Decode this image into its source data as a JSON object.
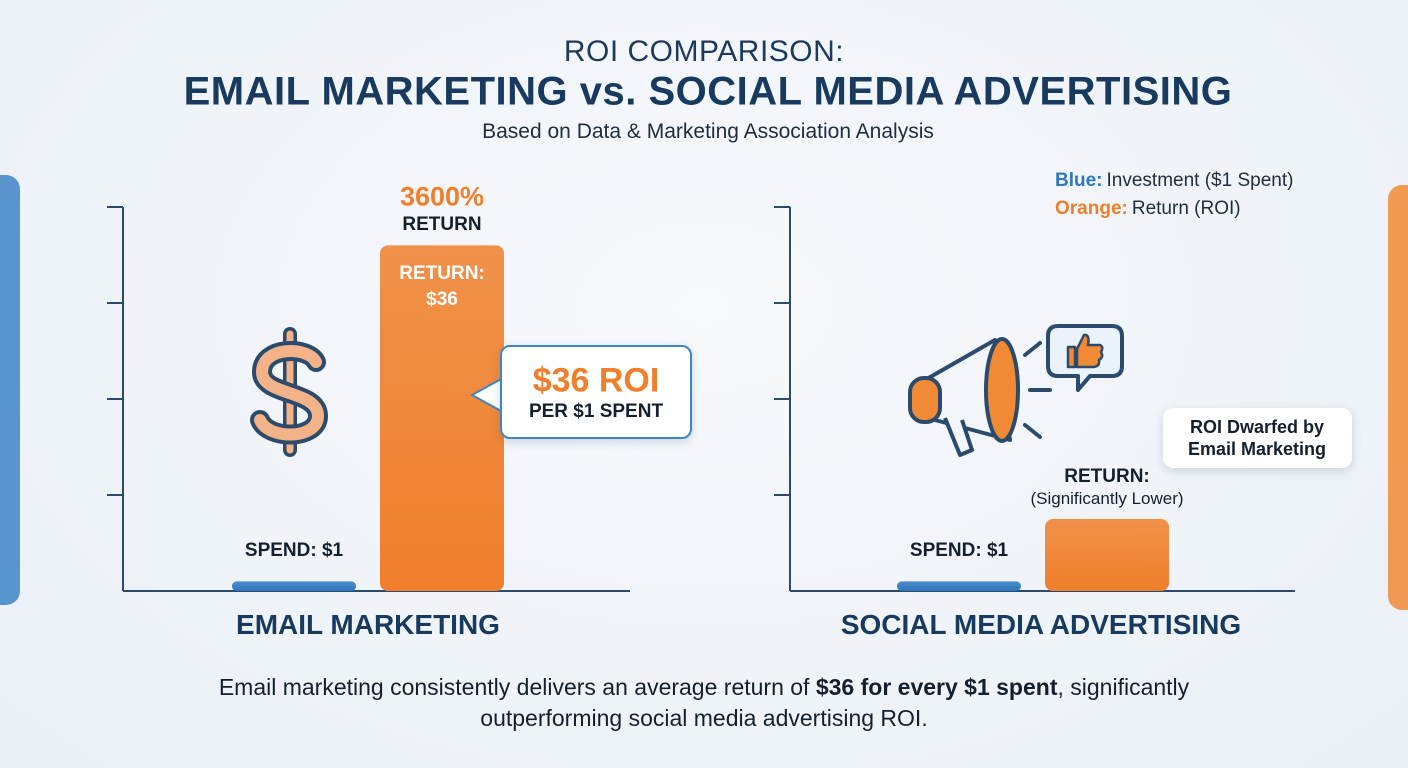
{
  "header": {
    "kicker": "ROI COMPARISON:",
    "title": "EMAIL MARKETING vs. SOCIAL MEDIA ADVERTISING",
    "subtitle": "Based on Data & Marketing Association Analysis"
  },
  "legend": {
    "items": [
      {
        "key": "Blue:",
        "label": "Investment ($1 Spent)"
      },
      {
        "key": "Orange:",
        "label": "Return (ROI)"
      }
    ]
  },
  "chart_data": [
    {
      "type": "bar",
      "title": "EMAIL MARKETING",
      "categories": [
        null,
        null
      ],
      "values": [
        1,
        36
      ],
      "value_labels": [
        "SPEND: $1",
        "RETURN: $36"
      ],
      "colors": [
        "#2f78c0",
        "#f07f2b"
      ],
      "ylim": [
        0,
        40
      ],
      "yticks": [
        10,
        20,
        30,
        40
      ],
      "annotations": [
        "3600%",
        "RETURN"
      ],
      "callout": {
        "headline": "$36 ROI",
        "text": "PER $1 SPENT"
      }
    },
    {
      "type": "bar",
      "title": "SOCIAL MEDIA ADVERTISING",
      "categories": [
        null,
        null
      ],
      "values": [
        1,
        7.5
      ],
      "value_labels": [
        "SPEND: $1",
        null
      ],
      "colors": [
        "#2f78c0",
        "#f07f2b"
      ],
      "ylim": [
        0,
        40
      ],
      "yticks": [
        10,
        20,
        30,
        40
      ],
      "annotations": [
        "RETURN:",
        "(Significantly Lower)"
      ],
      "callout": {
        "text": "ROI Dwarfed by Email Marketing"
      }
    }
  ],
  "footer": {
    "lead": "Email marketing consistently delivers an average return of",
    "emphasis": "$36 for every $1 spent",
    "tail": ", significantly outperforming social media advertising ROI."
  }
}
